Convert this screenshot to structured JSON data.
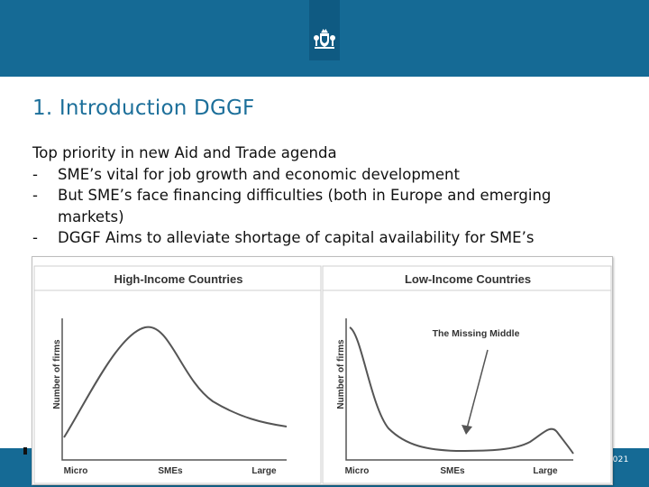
{
  "slide": {
    "title": "1. Introduction DGGF",
    "intro": "Top priority in new Aid and Trade agenda",
    "bullet_marker": "-",
    "bullets": [
      "SME’s vital for job growth and economic development",
      "But SME’s face financing difficulties (both in Europe and emerging markets)",
      "DGGF Aims to alleviate shortage of capital availability for SME’s"
    ],
    "footer_date": "-2021"
  },
  "colors": {
    "band": "#156a95",
    "title": "#1c6f9a",
    "logo_box": "#0f5a82"
  },
  "icons": {
    "logo": "coat-of-arms-icon"
  },
  "chart_data": [
    {
      "type": "line",
      "title": "High-Income Countries",
      "ylabel": "Number of firms",
      "tick_labels": [
        "Micro",
        "SMEs",
        "Large"
      ],
      "annotation": ""
    },
    {
      "type": "line",
      "title": "Low-Income Countries",
      "ylabel": "Number of firms",
      "tick_labels": [
        "Micro",
        "SMEs",
        "Large"
      ],
      "annotation": "The Missing Middle"
    }
  ]
}
